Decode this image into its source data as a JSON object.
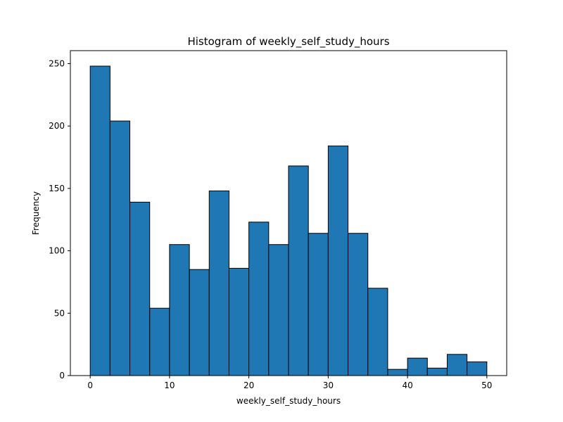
{
  "chart_data": {
    "type": "bar",
    "subtype": "histogram",
    "title": "Histogram of weekly_self_study_hours",
    "xlabel": "weekly_self_study_hours",
    "ylabel": "Frequency",
    "bin_edges": [
      0,
      2.5,
      5,
      7.5,
      10,
      12.5,
      15,
      17.5,
      20,
      22.5,
      25,
      27.5,
      30,
      32.5,
      35,
      37.5,
      40,
      42.5,
      45,
      47.5,
      50
    ],
    "values": [
      248,
      204,
      139,
      54,
      105,
      85,
      148,
      86,
      123,
      105,
      168,
      114,
      184,
      114,
      70,
      5,
      14,
      6,
      17,
      11
    ],
    "xlim": [
      -2.5,
      52.5
    ],
    "ylim": [
      0,
      260.4
    ],
    "xticks": [
      0,
      10,
      20,
      30,
      40,
      50
    ],
    "yticks": [
      0,
      50,
      100,
      150,
      200,
      250
    ],
    "grid": false,
    "legend": "none",
    "bar_color": "#1f77b4",
    "edge_color": "#000000"
  }
}
